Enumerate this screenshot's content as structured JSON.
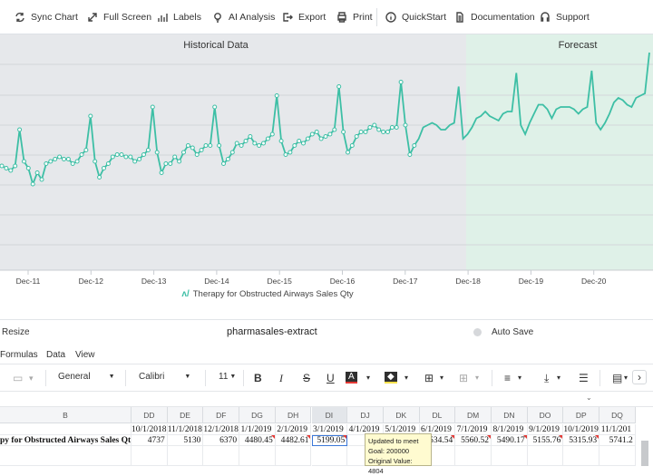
{
  "toolbar": {
    "buttons": [
      {
        "label": "Sync Chart",
        "icon": "sync-icon"
      },
      {
        "label": "Full Screen",
        "icon": "expand-icon"
      },
      {
        "label": "Labels",
        "icon": "bar-chart-icon"
      },
      {
        "label": "AI Analysis",
        "icon": "lightbulb-icon"
      },
      {
        "label": "Export",
        "icon": "export-icon"
      },
      {
        "label": "Print",
        "icon": "printer-icon"
      },
      {
        "label": "QuickStart",
        "icon": "info-icon"
      },
      {
        "label": "Documentation",
        "icon": "document-icon"
      },
      {
        "label": "Support",
        "icon": "support-icon"
      }
    ]
  },
  "chart_data": {
    "type": "line",
    "regions": [
      "Historical Data",
      "Forecast"
    ],
    "x_ticks": [
      "Dec-11",
      "Dec-12",
      "Dec-13",
      "Dec-14",
      "Dec-15",
      "Dec-16",
      "Dec-17",
      "Dec-18",
      "Dec-19",
      "Dec-20"
    ],
    "forecast_start_index": 94,
    "series": [
      {
        "name": "Therapy for Obstructed Airways Sales Qty",
        "color": "#3dbfa5",
        "values": [
          0.46,
          0.45,
          0.44,
          0.46,
          0.62,
          0.48,
          0.45,
          0.38,
          0.43,
          0.4,
          0.47,
          0.48,
          0.49,
          0.5,
          0.49,
          0.49,
          0.47,
          0.48,
          0.51,
          0.53,
          0.68,
          0.48,
          0.41,
          0.45,
          0.47,
          0.5,
          0.51,
          0.51,
          0.5,
          0.5,
          0.48,
          0.49,
          0.51,
          0.53,
          0.72,
          0.52,
          0.43,
          0.47,
          0.47,
          0.5,
          0.48,
          0.52,
          0.55,
          0.54,
          0.51,
          0.53,
          0.55,
          0.55,
          0.72,
          0.55,
          0.47,
          0.49,
          0.52,
          0.56,
          0.55,
          0.57,
          0.59,
          0.56,
          0.55,
          0.56,
          0.58,
          0.6,
          0.77,
          0.57,
          0.51,
          0.52,
          0.55,
          0.57,
          0.56,
          0.58,
          0.6,
          0.61,
          0.58,
          0.59,
          0.6,
          0.62,
          0.81,
          0.61,
          0.52,
          0.55,
          0.59,
          0.61,
          0.61,
          0.63,
          0.64,
          0.62,
          0.61,
          0.61,
          0.63,
          0.63,
          0.83,
          0.64,
          0.51,
          0.55,
          0.58,
          0.63,
          0.64,
          0.65,
          0.64,
          0.62,
          0.62,
          0.64,
          0.65,
          0.81,
          0.58,
          0.6,
          0.63,
          0.67,
          0.68,
          0.7,
          0.68,
          0.67,
          0.66,
          0.69,
          0.7,
          0.7,
          0.87,
          0.64,
          0.6,
          0.65,
          0.69,
          0.73,
          0.73,
          0.71,
          0.67,
          0.71,
          0.72,
          0.72,
          0.72,
          0.71,
          0.69,
          0.71,
          0.72,
          0.88,
          0.65,
          0.62,
          0.65,
          0.69,
          0.74,
          0.76,
          0.75,
          0.73,
          0.72,
          0.76,
          0.77,
          0.78,
          0.96
        ]
      }
    ],
    "grid": true,
    "legend_position": "bottom"
  },
  "sheet": {
    "resize_label": "Resize",
    "file_name": "pharmasales-extract",
    "auto_save_label": "Auto Save",
    "menu": [
      "Formulas",
      "Data",
      "View"
    ],
    "format": {
      "number_format": "General",
      "font": "Calibri",
      "font_size": "11"
    },
    "row_label_header": "B",
    "row_label": "py for Obstructed Airways Sales Qty",
    "columns": [
      {
        "name": "DD",
        "date": "10/1/2018",
        "value": "4737",
        "flag": false
      },
      {
        "name": "DE",
        "date": "11/1/2018",
        "value": "5130",
        "flag": false
      },
      {
        "name": "DF",
        "date": "12/1/2018",
        "value": "6370",
        "flag": false
      },
      {
        "name": "DG",
        "date": "1/1/2019",
        "value": "4480.45",
        "flag": true
      },
      {
        "name": "DH",
        "date": "2/1/2019",
        "value": "4482.61",
        "flag": true
      },
      {
        "name": "DI",
        "date": "3/1/2019",
        "value": "5199.05",
        "flag": true
      },
      {
        "name": "DJ",
        "date": "4/1/2019",
        "value": "",
        "flag": false
      },
      {
        "name": "DK",
        "date": "5/1/2019",
        "value": "",
        "flag": false
      },
      {
        "name": "DL",
        "date": "6/1/2019",
        "value": "5534.54",
        "flag": true
      },
      {
        "name": "DM",
        "date": "7/1/2019",
        "value": "5560.52",
        "flag": true
      },
      {
        "name": "DN",
        "date": "8/1/2019",
        "value": "5490.17",
        "flag": true
      },
      {
        "name": "DO",
        "date": "9/1/2019",
        "value": "5155.76",
        "flag": true
      },
      {
        "name": "DP",
        "date": "10/1/2019",
        "value": "5315.93",
        "flag": true
      },
      {
        "name": "DQ",
        "date": "11/1/201",
        "value": "5741.2",
        "flag": false
      }
    ],
    "tooltip": {
      "line1": "Updated to meet",
      "line2": "Goal: 200000",
      "line3": "Original Value: 4804"
    }
  }
}
